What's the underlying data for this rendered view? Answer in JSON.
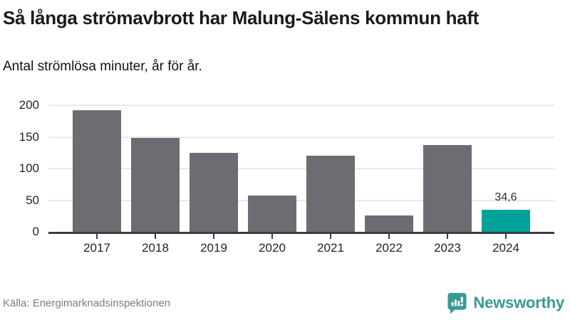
{
  "header": {
    "title": "Så långa strömavbrott har Malung-Sälens kommun haft",
    "subtitle": "Antal strömlösa minuter, år för år."
  },
  "chart_data": {
    "type": "bar",
    "title": "Så långa strömavbrott har Malung-Sälens kommun haft",
    "subtitle": "Antal strömlösa minuter, år för år.",
    "categories": [
      "2017",
      "2018",
      "2019",
      "2020",
      "2021",
      "2022",
      "2023",
      "2024"
    ],
    "values": [
      192,
      149,
      125,
      57,
      120,
      26,
      137,
      34.6
    ],
    "value_labels": [
      "",
      "",
      "",
      "",
      "",
      "",
      "",
      "34,6"
    ],
    "highlight_index": 7,
    "bar_color": "#6d6c72",
    "highlight_color": "#00a29a",
    "xlabel": "",
    "ylabel": "",
    "ylim": [
      0,
      200
    ],
    "yticks": [
      0,
      50,
      100,
      150,
      200
    ],
    "grid": true,
    "legend_position": "none"
  },
  "footer": {
    "source": "Källa: Energimarknadsinspektionen",
    "brand": "Newsworthy",
    "brand_color": "#379a95",
    "logo_icon": "speech-bubble-bar-chart-icon"
  }
}
